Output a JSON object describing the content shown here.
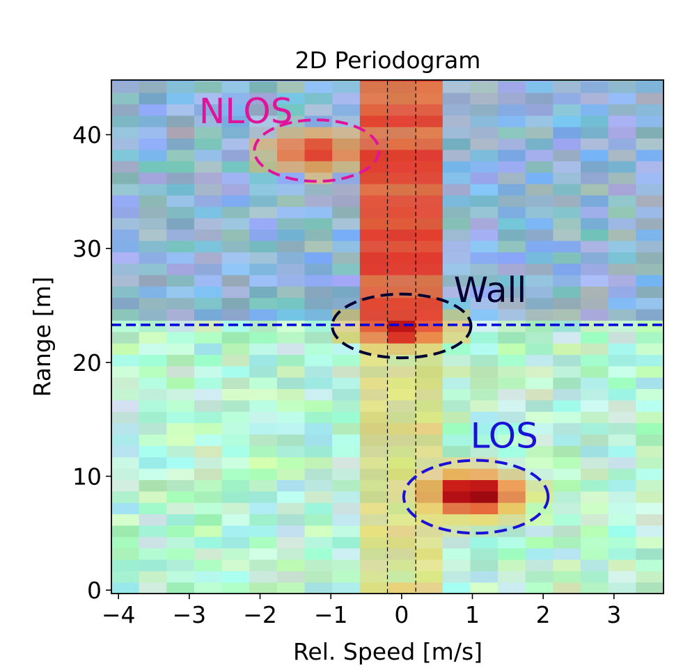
{
  "chart_data": {
    "type": "heatmap",
    "title": "2D Periodogram",
    "xlabel": "Rel. Speed [m/s]",
    "ylabel": "Range [m]",
    "xlim": [
      -4.1,
      3.7
    ],
    "ylim": [
      -0.3,
      44.8
    ],
    "x_ticks": [
      -4,
      -3,
      -2,
      -1,
      0,
      1,
      2,
      3
    ],
    "x_tick_labels": [
      "−4",
      "−3",
      "−2",
      "−1",
      "0",
      "1",
      "2",
      "3"
    ],
    "y_ticks": [
      0,
      10,
      20,
      30,
      40
    ],
    "y_tick_labels": [
      "0",
      "10",
      "20",
      "30",
      "40"
    ],
    "grid": false,
    "cell_width_ms": 0.39,
    "cell_height_m": 1.0,
    "zero_speed_band": {
      "x_min": -0.2,
      "x_max": 0.2
    },
    "range_threshold": {
      "y": 23.3,
      "color": "#0000dd"
    },
    "regions": [
      {
        "label": "NLOS",
        "color": "#e0149a",
        "center": [
          -1.2,
          38.6
        ],
        "half_width": 0.88,
        "half_height": 2.7
      },
      {
        "label": "Wall",
        "color": "#000033",
        "center": [
          0.0,
          23.2
        ],
        "half_width": 0.98,
        "half_height": 2.8
      },
      {
        "label": "LOS",
        "color": "#1a10d8",
        "center": [
          1.05,
          8.2
        ],
        "half_width": 1.02,
        "half_height": 3.2
      }
    ],
    "hot_spots": [
      {
        "name": "NLOS target",
        "x": -1.2,
        "y": 38.6,
        "intensity": 0.62
      },
      {
        "name": "Wall reflection",
        "x": 0.0,
        "y": 23.0,
        "intensity": 0.82
      },
      {
        "name": "LOS target",
        "x": 1.0,
        "y": 8.5,
        "intensity": 1.0
      }
    ],
    "background_tint": {
      "above_threshold": "#8fb6d6",
      "below_threshold": "#b8f2d2"
    }
  }
}
